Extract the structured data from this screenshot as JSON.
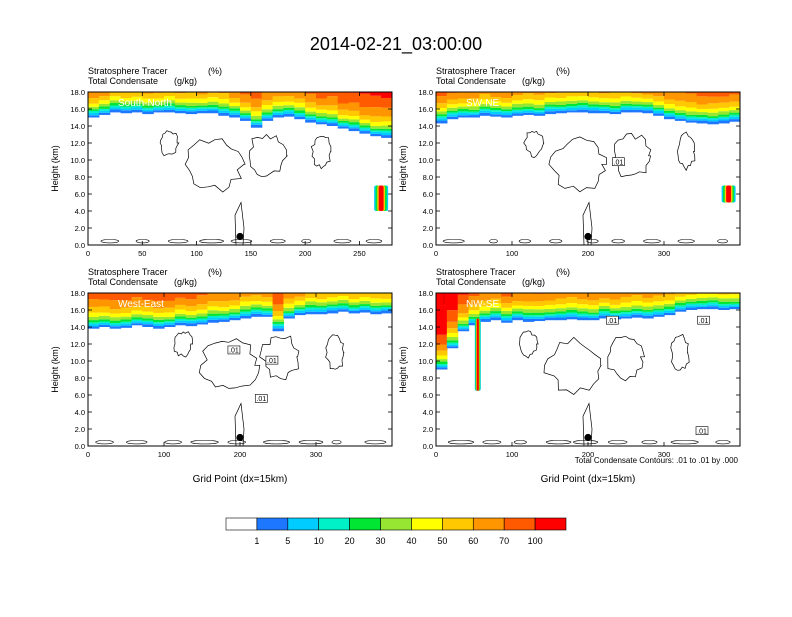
{
  "title": "2014-02-21_03:00:00",
  "footnote": "Total Condensate Contours: .01 to .01 by .000",
  "colors": {
    "levels": [
      "#ffffff",
      "#1e78ff",
      "#00ccff",
      "#00f0c8",
      "#00e632",
      "#96e632",
      "#ffff00",
      "#ffc800",
      "#ff9600",
      "#ff5a00",
      "#ff0000"
    ],
    "contour": "#000000",
    "text": "#000000",
    "ocean_white": "#ffffff"
  },
  "colorbar": {
    "labels": [
      "1",
      "5",
      "10",
      "20",
      "30",
      "40",
      "50",
      "60",
      "70",
      "100"
    ]
  },
  "chart_data": [
    {
      "type": "heatmap",
      "panel": "South-North",
      "label": "South-North",
      "subtitle_left_1": "Stratosphere Tracer",
      "subtitle_unit_1": "(%)",
      "subtitle_left_2": "Total Condensate",
      "subtitle_unit_2": "(g/kg)",
      "ylabel": "Height (km)",
      "xlabel": "",
      "xlim": [
        0,
        280
      ],
      "ylim": [
        0,
        18
      ],
      "xticks": [
        "0",
        "50",
        "100",
        "150",
        "200",
        "250"
      ],
      "yticks": [
        "0.0",
        "2.0",
        "4.0",
        "6.0",
        "8.0",
        "10.0",
        "12.0",
        "14.0",
        "16.0",
        "18.0"
      ],
      "tropopause_km": [
        15.0,
        15.3,
        15.6,
        15.5,
        15.6,
        15.4,
        15.6,
        15.6,
        15.5,
        15.4,
        15.5,
        15.5,
        15.2,
        15.0,
        14.6,
        13.8,
        14.6,
        15.0,
        15.1,
        14.8,
        14.4,
        14.2,
        14.0,
        13.7,
        13.4,
        13.1,
        12.8,
        12.6
      ],
      "intrusions": [
        {
          "x": 270,
          "y_bottom": 4.0,
          "y_top": 7.0
        }
      ],
      "marker": {
        "x": 140,
        "y": 1.0
      },
      "contour_labels": []
    },
    {
      "type": "heatmap",
      "panel": "SW-NE",
      "label": "SW-NE",
      "subtitle_left_1": "Stratosphere Tracer",
      "subtitle_unit_1": "(%)",
      "subtitle_left_2": "Total Condensate",
      "subtitle_unit_2": "(g/kg)",
      "ylabel": "Height (km)",
      "xlabel": "",
      "xlim": [
        0,
        400
      ],
      "ylim": [
        0,
        18
      ],
      "xticks": [
        "0",
        "100",
        "200",
        "300"
      ],
      "yticks": [
        "0.0",
        "2.0",
        "4.0",
        "6.0",
        "8.0",
        "10.0",
        "12.0",
        "14.0",
        "16.0",
        "18.0"
      ],
      "tropopause_km": [
        14.3,
        14.8,
        15.0,
        15.0,
        15.2,
        15.1,
        15.0,
        15.2,
        15.3,
        15.2,
        15.4,
        15.5,
        15.6,
        15.6,
        15.5,
        15.5,
        15.4,
        15.6,
        15.6,
        15.5,
        15.2,
        14.8,
        14.6,
        14.4,
        14.3,
        14.2,
        14.3,
        14.5
      ],
      "intrusions": [
        {
          "x": 385,
          "y_bottom": 5.0,
          "y_top": 7.0
        }
      ],
      "marker": {
        "x": 200,
        "y": 1.0
      },
      "contour_labels": [
        {
          "x": 240,
          "y": 9.8,
          "text": ".01"
        }
      ]
    },
    {
      "type": "heatmap",
      "panel": "West-East",
      "label": "West-East",
      "subtitle_left_1": "Stratosphere Tracer",
      "subtitle_unit_1": "(%)",
      "subtitle_left_2": "Total Condensate",
      "subtitle_unit_2": "(g/kg)",
      "ylabel": "Height (km)",
      "xlabel": "Grid Point (dx=15km)",
      "xlim": [
        0,
        400
      ],
      "ylim": [
        0,
        18
      ],
      "xticks": [
        "0",
        "100",
        "200",
        "300"
      ],
      "yticks": [
        "0.0",
        "2.0",
        "4.0",
        "6.0",
        "8.0",
        "10.0",
        "12.0",
        "14.0",
        "16.0",
        "18.0"
      ],
      "tropopause_km": [
        13.8,
        14.0,
        13.8,
        13.9,
        14.2,
        14.0,
        13.8,
        14.0,
        14.2,
        14.1,
        14.3,
        14.5,
        14.6,
        14.8,
        15.0,
        15.2,
        15.2,
        13.5,
        15.0,
        15.4,
        15.5,
        15.5,
        15.6,
        15.8,
        15.6,
        15.7,
        15.5,
        15.6
      ],
      "intrusions": [],
      "marker": {
        "x": 200,
        "y": 1.0
      },
      "contour_labels": [
        {
          "x": 192,
          "y": 11.3,
          "text": ".01"
        },
        {
          "x": 242,
          "y": 10.1,
          "text": ".01"
        },
        {
          "x": 228,
          "y": 5.6,
          "text": ".01"
        }
      ]
    },
    {
      "type": "heatmap",
      "panel": "NW-SE",
      "label": "NW-SE",
      "subtitle_left_1": "Stratosphere Tracer",
      "subtitle_unit_1": "(%)",
      "subtitle_left_2": "Total Condensate",
      "subtitle_unit_2": "(g/kg)",
      "ylabel": "Height (km)",
      "xlabel": "Grid Point (dx=15km)",
      "xlim": [
        0,
        400
      ],
      "ylim": [
        0,
        18
      ],
      "xticks": [
        "0",
        "100",
        "200",
        "300"
      ],
      "yticks": [
        "0.0",
        "2.0",
        "4.0",
        "6.0",
        "8.0",
        "10.0",
        "12.0",
        "14.0",
        "16.0",
        "18.0"
      ],
      "tropopause_km": [
        9.0,
        11.5,
        13.5,
        14.2,
        14.6,
        14.8,
        14.5,
        14.8,
        14.6,
        14.7,
        14.8,
        14.8,
        14.9,
        14.8,
        14.8,
        15.0,
        14.9,
        15.0,
        15.1,
        15.0,
        15.2,
        15.4,
        15.8,
        16.0,
        16.1,
        16.1,
        16.0,
        16.1
      ],
      "intrusions": [
        {
          "x": 55,
          "y_bottom": 6.5,
          "y_top": 15.0
        }
      ],
      "marker": {
        "x": 200,
        "y": 1.0
      },
      "contour_labels": [
        {
          "x": 232,
          "y": 14.8,
          "text": ".01"
        },
        {
          "x": 352,
          "y": 14.8,
          "text": ".01"
        },
        {
          "x": 350,
          "y": 1.8,
          "text": ".01"
        }
      ]
    }
  ]
}
